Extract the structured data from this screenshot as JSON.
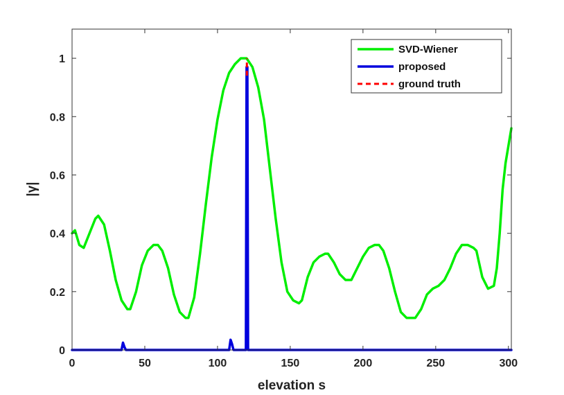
{
  "chart_data": {
    "type": "line",
    "title": "",
    "xlabel": "elevation s",
    "ylabel": "|γ|",
    "xlim": [
      0,
      302
    ],
    "ylim": [
      0,
      1.1
    ],
    "xticks": [
      0,
      50,
      100,
      150,
      200,
      250,
      300
    ],
    "yticks": [
      0,
      0.2,
      0.4,
      0.6,
      0.8,
      1
    ],
    "ytick_labels": [
      "0",
      "0.2",
      "0.4",
      "0.6",
      "0.8",
      "1"
    ],
    "grid": false,
    "legend_position": "top-right",
    "series": [
      {
        "name": "SVD-Wiener",
        "color": "#00ee00",
        "style": "solid",
        "x": [
          0,
          2,
          5,
          8,
          12,
          16,
          18,
          22,
          26,
          30,
          34,
          38,
          40,
          44,
          48,
          52,
          56,
          59,
          62,
          66,
          70,
          74,
          78,
          80,
          84,
          88,
          92,
          96,
          100,
          104,
          108,
          112,
          116,
          120,
          124,
          128,
          132,
          136,
          140,
          144,
          148,
          152,
          156,
          158,
          162,
          166,
          170,
          174,
          176,
          180,
          184,
          188,
          192,
          196,
          200,
          204,
          208,
          211,
          214,
          218,
          222,
          226,
          230,
          234,
          236,
          240,
          244,
          248,
          252,
          256,
          260,
          264,
          268,
          272,
          276,
          278,
          282,
          286,
          290,
          292,
          294,
          296,
          298,
          300,
          302
        ],
        "y": [
          0.4,
          0.41,
          0.36,
          0.35,
          0.4,
          0.45,
          0.46,
          0.43,
          0.34,
          0.24,
          0.17,
          0.14,
          0.14,
          0.2,
          0.29,
          0.34,
          0.36,
          0.36,
          0.34,
          0.28,
          0.19,
          0.13,
          0.11,
          0.11,
          0.18,
          0.33,
          0.5,
          0.66,
          0.79,
          0.89,
          0.95,
          0.98,
          1.0,
          1.0,
          0.97,
          0.9,
          0.79,
          0.62,
          0.45,
          0.3,
          0.2,
          0.17,
          0.16,
          0.17,
          0.25,
          0.3,
          0.32,
          0.33,
          0.33,
          0.3,
          0.26,
          0.24,
          0.24,
          0.28,
          0.32,
          0.35,
          0.36,
          0.36,
          0.34,
          0.28,
          0.2,
          0.13,
          0.11,
          0.11,
          0.11,
          0.14,
          0.19,
          0.21,
          0.22,
          0.24,
          0.28,
          0.33,
          0.36,
          0.36,
          0.35,
          0.34,
          0.25,
          0.21,
          0.22,
          0.28,
          0.4,
          0.55,
          0.64,
          0.7,
          0.76
        ]
      },
      {
        "name": "proposed",
        "color": "#0000dd",
        "style": "solid",
        "x": [
          0,
          34,
          35,
          36,
          37,
          108,
          109,
          110,
          111,
          119.5,
          120,
          120.5,
          121,
          302
        ],
        "y": [
          0,
          0,
          0.025,
          0.01,
          0,
          0,
          0.035,
          0.02,
          0,
          0,
          0.97,
          0.97,
          0,
          0
        ]
      },
      {
        "name": "ground truth",
        "color": "#ff0000",
        "style": "dashed",
        "x": [
          120.2,
          120.2
        ],
        "y": [
          0.94,
          1.0
        ]
      }
    ]
  }
}
